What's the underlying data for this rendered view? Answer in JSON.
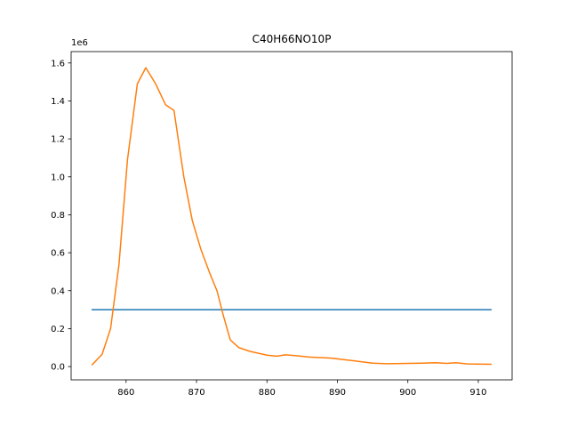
{
  "chart_data": {
    "type": "line",
    "title": "C40H66NO10P",
    "xlabel": "",
    "ylabel": "",
    "y_offset_label": "1e6",
    "xlim": [
      852.2,
      914.8
    ],
    "ylim": [
      -70000,
      1660000
    ],
    "x_ticks": [
      860,
      870,
      880,
      890,
      900,
      910
    ],
    "x_tick_labels": [
      "860",
      "870",
      "880",
      "890",
      "900",
      "910"
    ],
    "y_ticks": [
      0,
      200000,
      400000,
      600000,
      800000,
      1000000,
      1200000,
      1400000,
      1600000
    ],
    "y_tick_labels": [
      "0.0",
      "0.2",
      "0.4",
      "0.6",
      "0.8",
      "1.0",
      "1.2",
      "1.4",
      "1.6"
    ],
    "grid": false,
    "series": [
      {
        "color": "#1f77b4",
        "x": [
          855.2,
          911.8
        ],
        "y": [
          300000,
          300000
        ]
      },
      {
        "color": "#ff7f0e",
        "x": [
          855.2,
          856.6,
          857.8,
          859.0,
          860.2,
          861.6,
          862.8,
          864.2,
          865.6,
          866.8,
          868.2,
          869.4,
          870.6,
          871.8,
          872.9,
          873.8,
          874.8,
          876.0,
          877.6,
          880.0,
          881.4,
          882.6,
          884.0,
          886.0,
          889.0,
          892.0,
          895.0,
          897.0,
          899.0,
          902.0,
          904.0,
          905.5,
          906.8,
          908.5,
          911.8
        ],
        "y": [
          10000,
          65000,
          200000,
          540000,
          1090000,
          1490000,
          1575000,
          1490000,
          1380000,
          1350000,
          1000000,
          770000,
          620000,
          500000,
          400000,
          270000,
          140000,
          100000,
          80000,
          60000,
          55000,
          62000,
          58000,
          50000,
          45000,
          32000,
          18000,
          15000,
          16000,
          18000,
          20000,
          17000,
          20000,
          14000,
          12000
        ]
      }
    ]
  }
}
